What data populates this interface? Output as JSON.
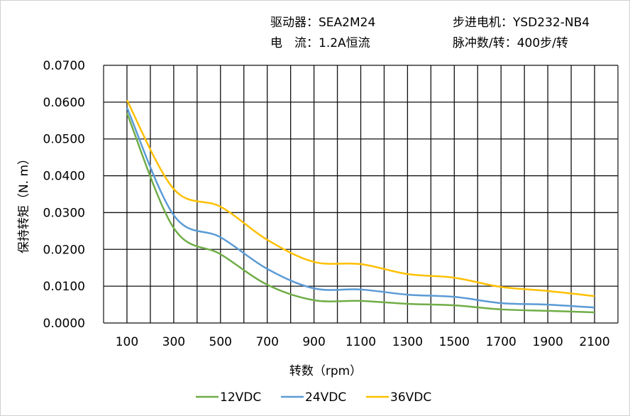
{
  "header": {
    "driver": "驱动器：SEA2M24",
    "motor": "步进电机：YSD232-NB4",
    "current": "电　流：1.2A恒流",
    "pulses": "脉冲数/转：400步/转"
  },
  "chart_data": {
    "type": "line",
    "xlabel": "转数（rpm）",
    "ylabel": "保持转矩（N. m）",
    "xlim": [
      0,
      2200
    ],
    "ylim": [
      0,
      0.07
    ],
    "x_ticks": [
      "100",
      "300",
      "500",
      "700",
      "900",
      "1100",
      "1300",
      "1500",
      "1700",
      "1900",
      "2100"
    ],
    "y_ticks": [
      "0.0000",
      "0.0100",
      "0.0200",
      "0.0300",
      "0.0400",
      "0.0500",
      "0.0600",
      "0.0700"
    ],
    "grid": true,
    "legend_position": "bottom",
    "x": [
      100,
      300,
      500,
      700,
      900,
      1100,
      1300,
      1500,
      1700,
      1900,
      2100
    ],
    "series": [
      {
        "name": "12VDC",
        "color": "#70AD47",
        "values": [
          0.057,
          0.0258,
          0.0187,
          0.0104,
          0.0062,
          0.006,
          0.0052,
          0.0048,
          0.0037,
          0.0033,
          0.0029
        ]
      },
      {
        "name": "24VDC",
        "color": "#5B9BD5",
        "values": [
          0.0585,
          0.0293,
          0.0233,
          0.0147,
          0.0094,
          0.0091,
          0.0077,
          0.0071,
          0.0054,
          0.005,
          0.0042
        ]
      },
      {
        "name": "36VDC",
        "color": "#FFC000",
        "values": [
          0.0605,
          0.0364,
          0.0316,
          0.0226,
          0.0166,
          0.016,
          0.0133,
          0.0123,
          0.0098,
          0.0087,
          0.0073
        ]
      }
    ]
  }
}
